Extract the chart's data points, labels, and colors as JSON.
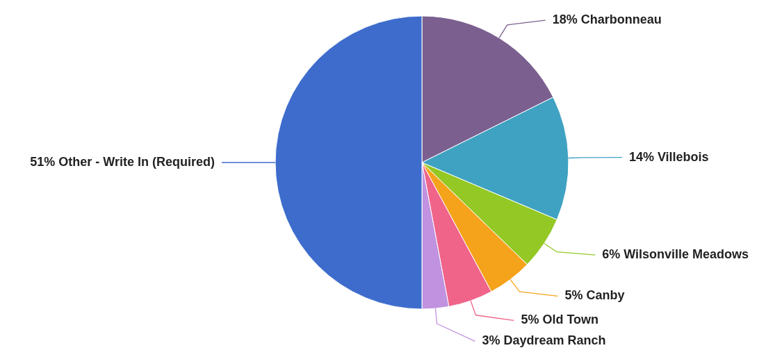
{
  "chart_data": {
    "type": "pie",
    "categories": [
      "Charbonneau",
      "Villebois",
      "Wilsonville Meadows",
      "Canby",
      "Old Town",
      "Daydream Ranch",
      "Other - Write In (Required)"
    ],
    "values": [
      18,
      14,
      6,
      5,
      5,
      3,
      51
    ],
    "value_labels": [
      "18%",
      "14%",
      "6%",
      "5%",
      "5%",
      "3%",
      "51%"
    ],
    "colors": [
      "#7b5f8f",
      "#3fa2c2",
      "#94c825",
      "#f5a31a",
      "#f0648a",
      "#c092e0",
      "#3d6ccc"
    ]
  }
}
